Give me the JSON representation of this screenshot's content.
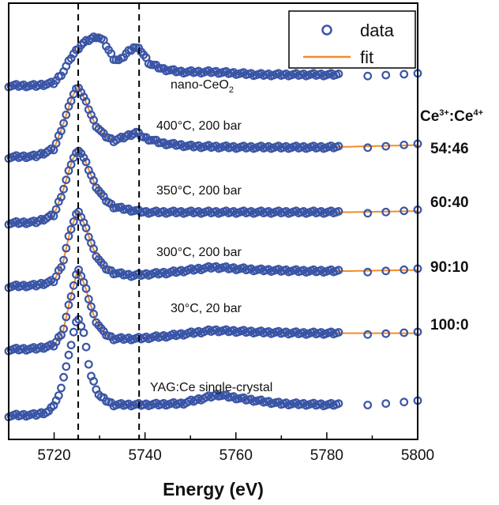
{
  "chart_data": {
    "type": "scatter",
    "title": "",
    "xlabel": "Energy (eV)",
    "ylabel": "",
    "xlim": [
      5710,
      5800
    ],
    "ylim": [
      0,
      7.5
    ],
    "x_ticks": [
      "5720",
      "5740",
      "5760",
      "5780",
      "5800"
    ],
    "vlines": [
      5725.3,
      5738.7
    ],
    "legend": {
      "position": "top-right",
      "entries": [
        {
          "label": "data",
          "marker": "circle"
        },
        {
          "label": "fit",
          "marker": "line"
        }
      ]
    },
    "ratio_header": {
      "base": "Ce",
      "sup1": "3+",
      "sep": ":Ce",
      "sup2": "4+"
    },
    "colors": {
      "data": "#3a55a6",
      "fit": "#f28c28",
      "dashed": "#000000"
    },
    "series": [
      {
        "label": "nano-CeO",
        "label_sub": "2",
        "offset": 6.0,
        "has_fit": false,
        "ratio": "",
        "points": [
          [
            5710,
            0.0
          ],
          [
            5716,
            0.0
          ],
          [
            5720,
            0.05
          ],
          [
            5722,
            0.25
          ],
          [
            5724,
            0.55
          ],
          [
            5726,
            0.75
          ],
          [
            5728,
            0.85
          ],
          [
            5729.5,
            0.9
          ],
          [
            5731,
            0.8
          ],
          [
            5733,
            0.5
          ],
          [
            5734.5,
            0.45
          ],
          [
            5736,
            0.6
          ],
          [
            5737.5,
            0.7
          ],
          [
            5739,
            0.65
          ],
          [
            5741,
            0.4
          ],
          [
            5744,
            0.3
          ],
          [
            5748,
            0.25
          ],
          [
            5755,
            0.25
          ],
          [
            5765,
            0.2
          ],
          [
            5775,
            0.2
          ],
          [
            5783,
            0.2
          ],
          [
            5789,
            0.2
          ],
          [
            5800,
            0.2
          ]
        ]
      },
      {
        "label": "400°C, 200 bar",
        "offset": 4.7,
        "has_fit": true,
        "ratio": "54:46",
        "points": [
          [
            5710,
            0.0
          ],
          [
            5716,
            0.02
          ],
          [
            5720,
            0.15
          ],
          [
            5722,
            0.6
          ],
          [
            5724,
            1.1
          ],
          [
            5725.3,
            1.3
          ],
          [
            5727,
            1.0
          ],
          [
            5729,
            0.6
          ],
          [
            5731,
            0.4
          ],
          [
            5733,
            0.3
          ],
          [
            5735,
            0.35
          ],
          [
            5738,
            0.45
          ],
          [
            5740,
            0.35
          ],
          [
            5744,
            0.25
          ],
          [
            5750,
            0.2
          ],
          [
            5760,
            0.18
          ],
          [
            5770,
            0.18
          ],
          [
            5780,
            0.18
          ],
          [
            5790,
            0.2
          ],
          [
            5800,
            0.22
          ]
        ]
      },
      {
        "label": "350°C, 200 bar",
        "offset": 3.5,
        "has_fit": true,
        "ratio": "60:40",
        "points": [
          [
            5710,
            0.0
          ],
          [
            5716,
            0.02
          ],
          [
            5720,
            0.15
          ],
          [
            5722,
            0.6
          ],
          [
            5724,
            1.15
          ],
          [
            5725.5,
            1.35
          ],
          [
            5727,
            1.1
          ],
          [
            5729,
            0.7
          ],
          [
            5731,
            0.45
          ],
          [
            5733,
            0.3
          ],
          [
            5736,
            0.25
          ],
          [
            5740,
            0.2
          ],
          [
            5745,
            0.2
          ],
          [
            5755,
            0.2
          ],
          [
            5765,
            0.2
          ],
          [
            5775,
            0.2
          ],
          [
            5785,
            0.2
          ],
          [
            5800,
            0.22
          ]
        ]
      },
      {
        "label": "300°C, 200 bar",
        "offset": 2.35,
        "has_fit": true,
        "ratio": "90:10",
        "points": [
          [
            5710,
            0.0
          ],
          [
            5716,
            0.02
          ],
          [
            5720,
            0.1
          ],
          [
            5722,
            0.45
          ],
          [
            5723.5,
            1.0
          ],
          [
            5725.3,
            1.4
          ],
          [
            5727,
            1.05
          ],
          [
            5729,
            0.6
          ],
          [
            5731,
            0.35
          ],
          [
            5733,
            0.25
          ],
          [
            5737,
            0.2
          ],
          [
            5745,
            0.25
          ],
          [
            5755,
            0.35
          ],
          [
            5765,
            0.3
          ],
          [
            5775,
            0.28
          ],
          [
            5785,
            0.28
          ],
          [
            5800,
            0.3
          ]
        ]
      },
      {
        "label": "30°C, 20 bar",
        "offset": 1.2,
        "has_fit": true,
        "ratio": "100:0",
        "points": [
          [
            5710,
            0.0
          ],
          [
            5716,
            0.02
          ],
          [
            5720,
            0.08
          ],
          [
            5722,
            0.35
          ],
          [
            5723.5,
            0.9
          ],
          [
            5725.3,
            1.5
          ],
          [
            5727,
            1.1
          ],
          [
            5729,
            0.55
          ],
          [
            5731,
            0.3
          ],
          [
            5733,
            0.2
          ],
          [
            5738,
            0.2
          ],
          [
            5745,
            0.25
          ],
          [
            5755,
            0.35
          ],
          [
            5765,
            0.32
          ],
          [
            5775,
            0.3
          ],
          [
            5785,
            0.3
          ],
          [
            5800,
            0.3
          ]
        ]
      },
      {
        "label": "YAG:Ce single-crystal",
        "offset": 0.0,
        "has_fit": false,
        "ratio": "",
        "points": [
          [
            5710,
            0.0
          ],
          [
            5716,
            0.02
          ],
          [
            5719,
            0.08
          ],
          [
            5721,
            0.35
          ],
          [
            5723,
            1.0
          ],
          [
            5724.5,
            1.6
          ],
          [
            5725.3,
            1.8
          ],
          [
            5726.5,
            1.5
          ],
          [
            5728,
            0.75
          ],
          [
            5730,
            0.35
          ],
          [
            5733,
            0.2
          ],
          [
            5740,
            0.2
          ],
          [
            5748,
            0.22
          ],
          [
            5756,
            0.38
          ],
          [
            5762,
            0.3
          ],
          [
            5770,
            0.22
          ],
          [
            5780,
            0.2
          ],
          [
            5790,
            0.22
          ],
          [
            5800,
            0.25
          ]
        ]
      }
    ]
  }
}
